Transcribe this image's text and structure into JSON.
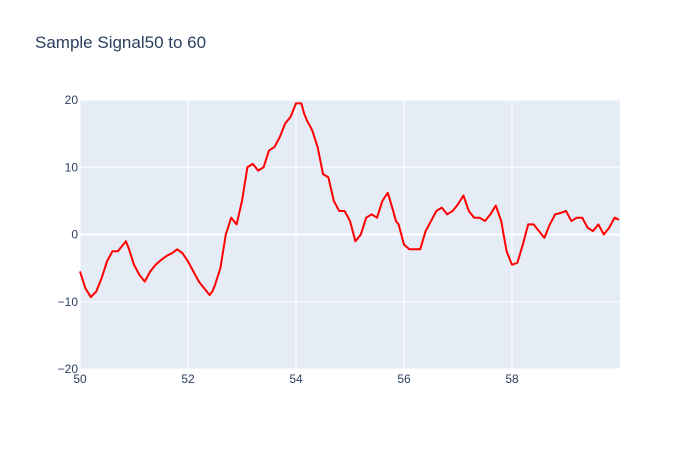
{
  "chart_data": {
    "type": "line",
    "title": "Sample Signal50 to 60",
    "xlabel": "",
    "ylabel": "",
    "xlim": [
      50,
      60
    ],
    "ylim": [
      -20,
      20
    ],
    "xticks": [
      50,
      52,
      54,
      56,
      58
    ],
    "yticks": [
      -20,
      -10,
      0,
      10,
      20
    ],
    "grid": true,
    "plot_background": "#e5ecf6",
    "grid_color": "#ffffff",
    "text_color": "#2a3f5f",
    "series": [
      {
        "color": "#ff0000",
        "x": [
          50.0,
          50.1,
          50.2,
          50.3,
          50.4,
          50.5,
          50.6,
          50.7,
          50.8,
          50.85,
          50.9,
          51.0,
          51.1,
          51.2,
          51.3,
          51.4,
          51.5,
          51.6,
          51.7,
          51.8,
          51.9,
          52.0,
          52.1,
          52.2,
          52.3,
          52.4,
          52.45,
          52.5,
          52.6,
          52.7,
          52.8,
          52.9,
          53.0,
          53.1,
          53.2,
          53.3,
          53.4,
          53.5,
          53.6,
          53.7,
          53.8,
          53.9,
          54.0,
          54.1,
          54.15,
          54.2,
          54.3,
          54.4,
          54.5,
          54.6,
          54.7,
          54.8,
          54.9,
          55.0,
          55.1,
          55.2,
          55.3,
          55.4,
          55.5,
          55.6,
          55.7,
          55.8,
          55.85,
          55.9,
          56.0,
          56.1,
          56.2,
          56.3,
          56.4,
          56.5,
          56.6,
          56.7,
          56.8,
          56.9,
          57.0,
          57.1,
          57.2,
          57.3,
          57.4,
          57.5,
          57.6,
          57.7,
          57.8,
          57.9,
          58.0,
          58.1,
          58.2,
          58.3,
          58.4,
          58.5,
          58.6,
          58.7,
          58.8,
          58.9,
          59.0,
          59.1,
          59.2,
          59.3,
          59.4,
          59.5,
          59.6,
          59.7,
          59.8,
          59.9,
          59.98
        ],
        "y": [
          -5.5,
          -8.0,
          -9.3,
          -8.5,
          -6.5,
          -4.0,
          -2.5,
          -2.5,
          -1.5,
          -1.0,
          -2.0,
          -4.5,
          -6.0,
          -7.0,
          -5.5,
          -4.5,
          -3.8,
          -3.2,
          -2.8,
          -2.2,
          -2.8,
          -4.0,
          -5.5,
          -7.0,
          -8.0,
          -9.0,
          -8.5,
          -7.5,
          -5.0,
          0.0,
          2.5,
          1.5,
          5.0,
          10.0,
          10.5,
          9.5,
          10.0,
          12.5,
          13.0,
          14.5,
          16.5,
          17.5,
          19.5,
          19.5,
          18.0,
          17.0,
          15.5,
          13.0,
          9.0,
          8.5,
          5.0,
          3.5,
          3.5,
          2.0,
          -1.0,
          0.0,
          2.5,
          3.0,
          2.5,
          5.0,
          6.2,
          3.5,
          2.0,
          1.5,
          -1.5,
          -2.2,
          -2.2,
          -2.2,
          0.5,
          2.0,
          3.5,
          4.0,
          3.0,
          3.5,
          4.5,
          5.8,
          3.5,
          2.5,
          2.5,
          2.0,
          3.0,
          4.3,
          2.0,
          -2.5,
          -4.5,
          -4.2,
          -1.5,
          1.5,
          1.5,
          0.5,
          -0.5,
          1.5,
          3.0,
          3.2,
          3.5,
          2.0,
          2.5,
          2.5,
          1.0,
          0.5,
          1.5,
          0.0,
          1.0,
          2.5,
          2.2
        ]
      }
    ]
  }
}
